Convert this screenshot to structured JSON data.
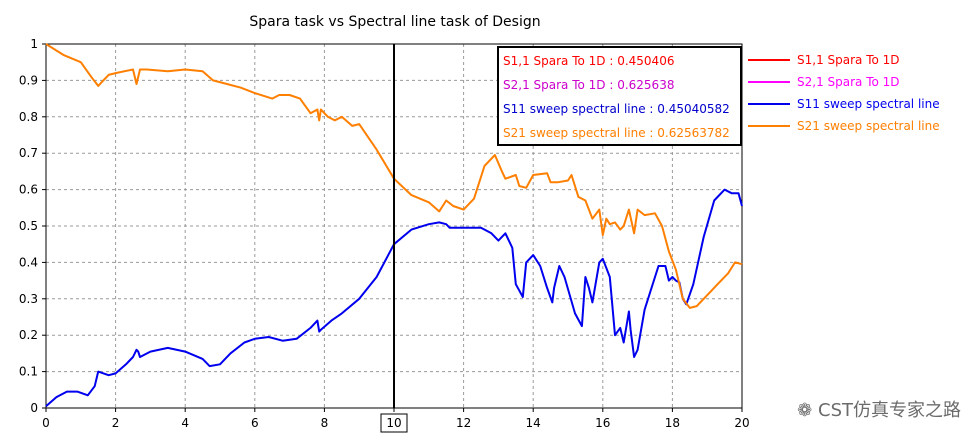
{
  "chart_data": {
    "type": "line",
    "title": "Spara task vs Spectral line task of Design",
    "xlabel": "",
    "ylabel": "",
    "xlim": [
      0,
      20
    ],
    "ylim": [
      0,
      1
    ],
    "grid": true,
    "legend_position": "right",
    "x_ticks": [
      "0",
      "2",
      "4",
      "6",
      "8",
      "10",
      "12",
      "14",
      "16",
      "18",
      "20"
    ],
    "y_ticks": [
      "0",
      "0.1",
      "0.2",
      "0.3",
      "0.4",
      "0.5",
      "0.6",
      "0.7",
      "0.8",
      "0.9",
      "1"
    ],
    "marker": {
      "x": 10,
      "label": "10"
    },
    "marker_readouts": [
      {
        "text": "S1,1 Spara To 1D : 0.450406",
        "color": "#ff0000"
      },
      {
        "text": "S2,1 Spara To 1D : 0.625638",
        "color": "#cc00cc"
      },
      {
        "text": "S11 sweep spectral line : 0.45040582",
        "color": "#0000cc"
      },
      {
        "text": "S21 sweep spectral line : 0.62563782",
        "color": "#ff7f00"
      }
    ],
    "series": [
      {
        "name": "S1,1 Spara To 1D",
        "color": "#ff0000",
        "draw": false,
        "x": [],
        "y": []
      },
      {
        "name": "S2,1 Spara To 1D",
        "color": "#ff00ff",
        "draw": false,
        "x": [],
        "y": []
      },
      {
        "name": "S11 sweep spectral line",
        "color": "#0000ee",
        "draw": true,
        "x": [
          0,
          0.3,
          0.6,
          0.9,
          1.2,
          1.4,
          1.5,
          1.8,
          2.0,
          2.3,
          2.5,
          2.6,
          2.65,
          2.7,
          3.0,
          3.5,
          4.0,
          4.5,
          4.7,
          5.0,
          5.3,
          5.7,
          6.0,
          6.4,
          6.8,
          7.2,
          7.6,
          7.8,
          7.85,
          7.9,
          8.2,
          8.5,
          9.0,
          9.5,
          10.0,
          10.5,
          11.0,
          11.3,
          11.5,
          11.6,
          12.0,
          12.5,
          12.8,
          13.0,
          13.2,
          13.4,
          13.5,
          13.7,
          13.8,
          14.0,
          14.2,
          14.4,
          14.55,
          14.6,
          14.75,
          14.9,
          15.2,
          15.4,
          15.5,
          15.6,
          15.7,
          15.9,
          16.0,
          16.2,
          16.35,
          16.5,
          16.6,
          16.75,
          16.8,
          16.9,
          17.0,
          17.2,
          17.6,
          17.8,
          17.9,
          18.0,
          18.1,
          18.2,
          18.3,
          18.4,
          18.6,
          18.9,
          19.2,
          19.5,
          19.7,
          19.9,
          20.0
        ],
        "y": [
          0.005,
          0.03,
          0.045,
          0.045,
          0.035,
          0.06,
          0.1,
          0.09,
          0.095,
          0.12,
          0.14,
          0.16,
          0.155,
          0.14,
          0.155,
          0.165,
          0.155,
          0.135,
          0.115,
          0.12,
          0.15,
          0.18,
          0.19,
          0.195,
          0.185,
          0.19,
          0.22,
          0.24,
          0.21,
          0.215,
          0.24,
          0.26,
          0.3,
          0.36,
          0.45,
          0.49,
          0.505,
          0.51,
          0.505,
          0.495,
          0.495,
          0.495,
          0.48,
          0.46,
          0.48,
          0.44,
          0.34,
          0.305,
          0.4,
          0.42,
          0.39,
          0.33,
          0.29,
          0.33,
          0.39,
          0.36,
          0.26,
          0.225,
          0.36,
          0.33,
          0.29,
          0.4,
          0.41,
          0.36,
          0.2,
          0.22,
          0.18,
          0.265,
          0.215,
          0.14,
          0.16,
          0.27,
          0.39,
          0.39,
          0.35,
          0.36,
          0.35,
          0.345,
          0.3,
          0.285,
          0.34,
          0.47,
          0.57,
          0.6,
          0.59,
          0.59,
          0.555
        ]
      },
      {
        "name": "S21 sweep spectral line",
        "color": "#ff7f00",
        "draw": true,
        "x": [
          0,
          0.5,
          1.0,
          1.3,
          1.5,
          1.6,
          1.8,
          2.0,
          2.5,
          2.6,
          2.7,
          2.9,
          3.5,
          4.0,
          4.5,
          4.8,
          5.2,
          5.6,
          6.0,
          6.5,
          6.7,
          7.0,
          7.3,
          7.6,
          7.8,
          7.85,
          7.9,
          8.1,
          8.3,
          8.5,
          8.8,
          9.0,
          9.5,
          10.0,
          10.5,
          11.0,
          11.3,
          11.5,
          11.7,
          12.0,
          12.3,
          12.6,
          12.9,
          13.1,
          13.2,
          13.5,
          13.6,
          13.8,
          14.0,
          14.4,
          14.5,
          14.7,
          15.0,
          15.1,
          15.3,
          15.5,
          15.7,
          15.9,
          16.0,
          16.1,
          16.2,
          16.35,
          16.5,
          16.6,
          16.75,
          16.9,
          17.0,
          17.2,
          17.5,
          17.7,
          17.9,
          18.1,
          18.3,
          18.5,
          18.7,
          19.0,
          19.3,
          19.6,
          19.8,
          20.0
        ],
        "y": [
          1.0,
          0.97,
          0.95,
          0.91,
          0.885,
          0.895,
          0.915,
          0.92,
          0.93,
          0.89,
          0.93,
          0.93,
          0.925,
          0.93,
          0.925,
          0.9,
          0.89,
          0.88,
          0.865,
          0.85,
          0.86,
          0.86,
          0.85,
          0.81,
          0.82,
          0.79,
          0.82,
          0.8,
          0.79,
          0.8,
          0.775,
          0.78,
          0.71,
          0.63,
          0.585,
          0.565,
          0.54,
          0.57,
          0.555,
          0.545,
          0.575,
          0.665,
          0.695,
          0.65,
          0.63,
          0.64,
          0.61,
          0.605,
          0.64,
          0.645,
          0.62,
          0.62,
          0.625,
          0.64,
          0.58,
          0.57,
          0.52,
          0.545,
          0.475,
          0.52,
          0.505,
          0.51,
          0.49,
          0.5,
          0.545,
          0.48,
          0.545,
          0.53,
          0.535,
          0.5,
          0.43,
          0.38,
          0.3,
          0.275,
          0.28,
          0.31,
          0.34,
          0.37,
          0.4,
          0.395
        ]
      }
    ]
  },
  "watermark": "CST仿真专家之路"
}
